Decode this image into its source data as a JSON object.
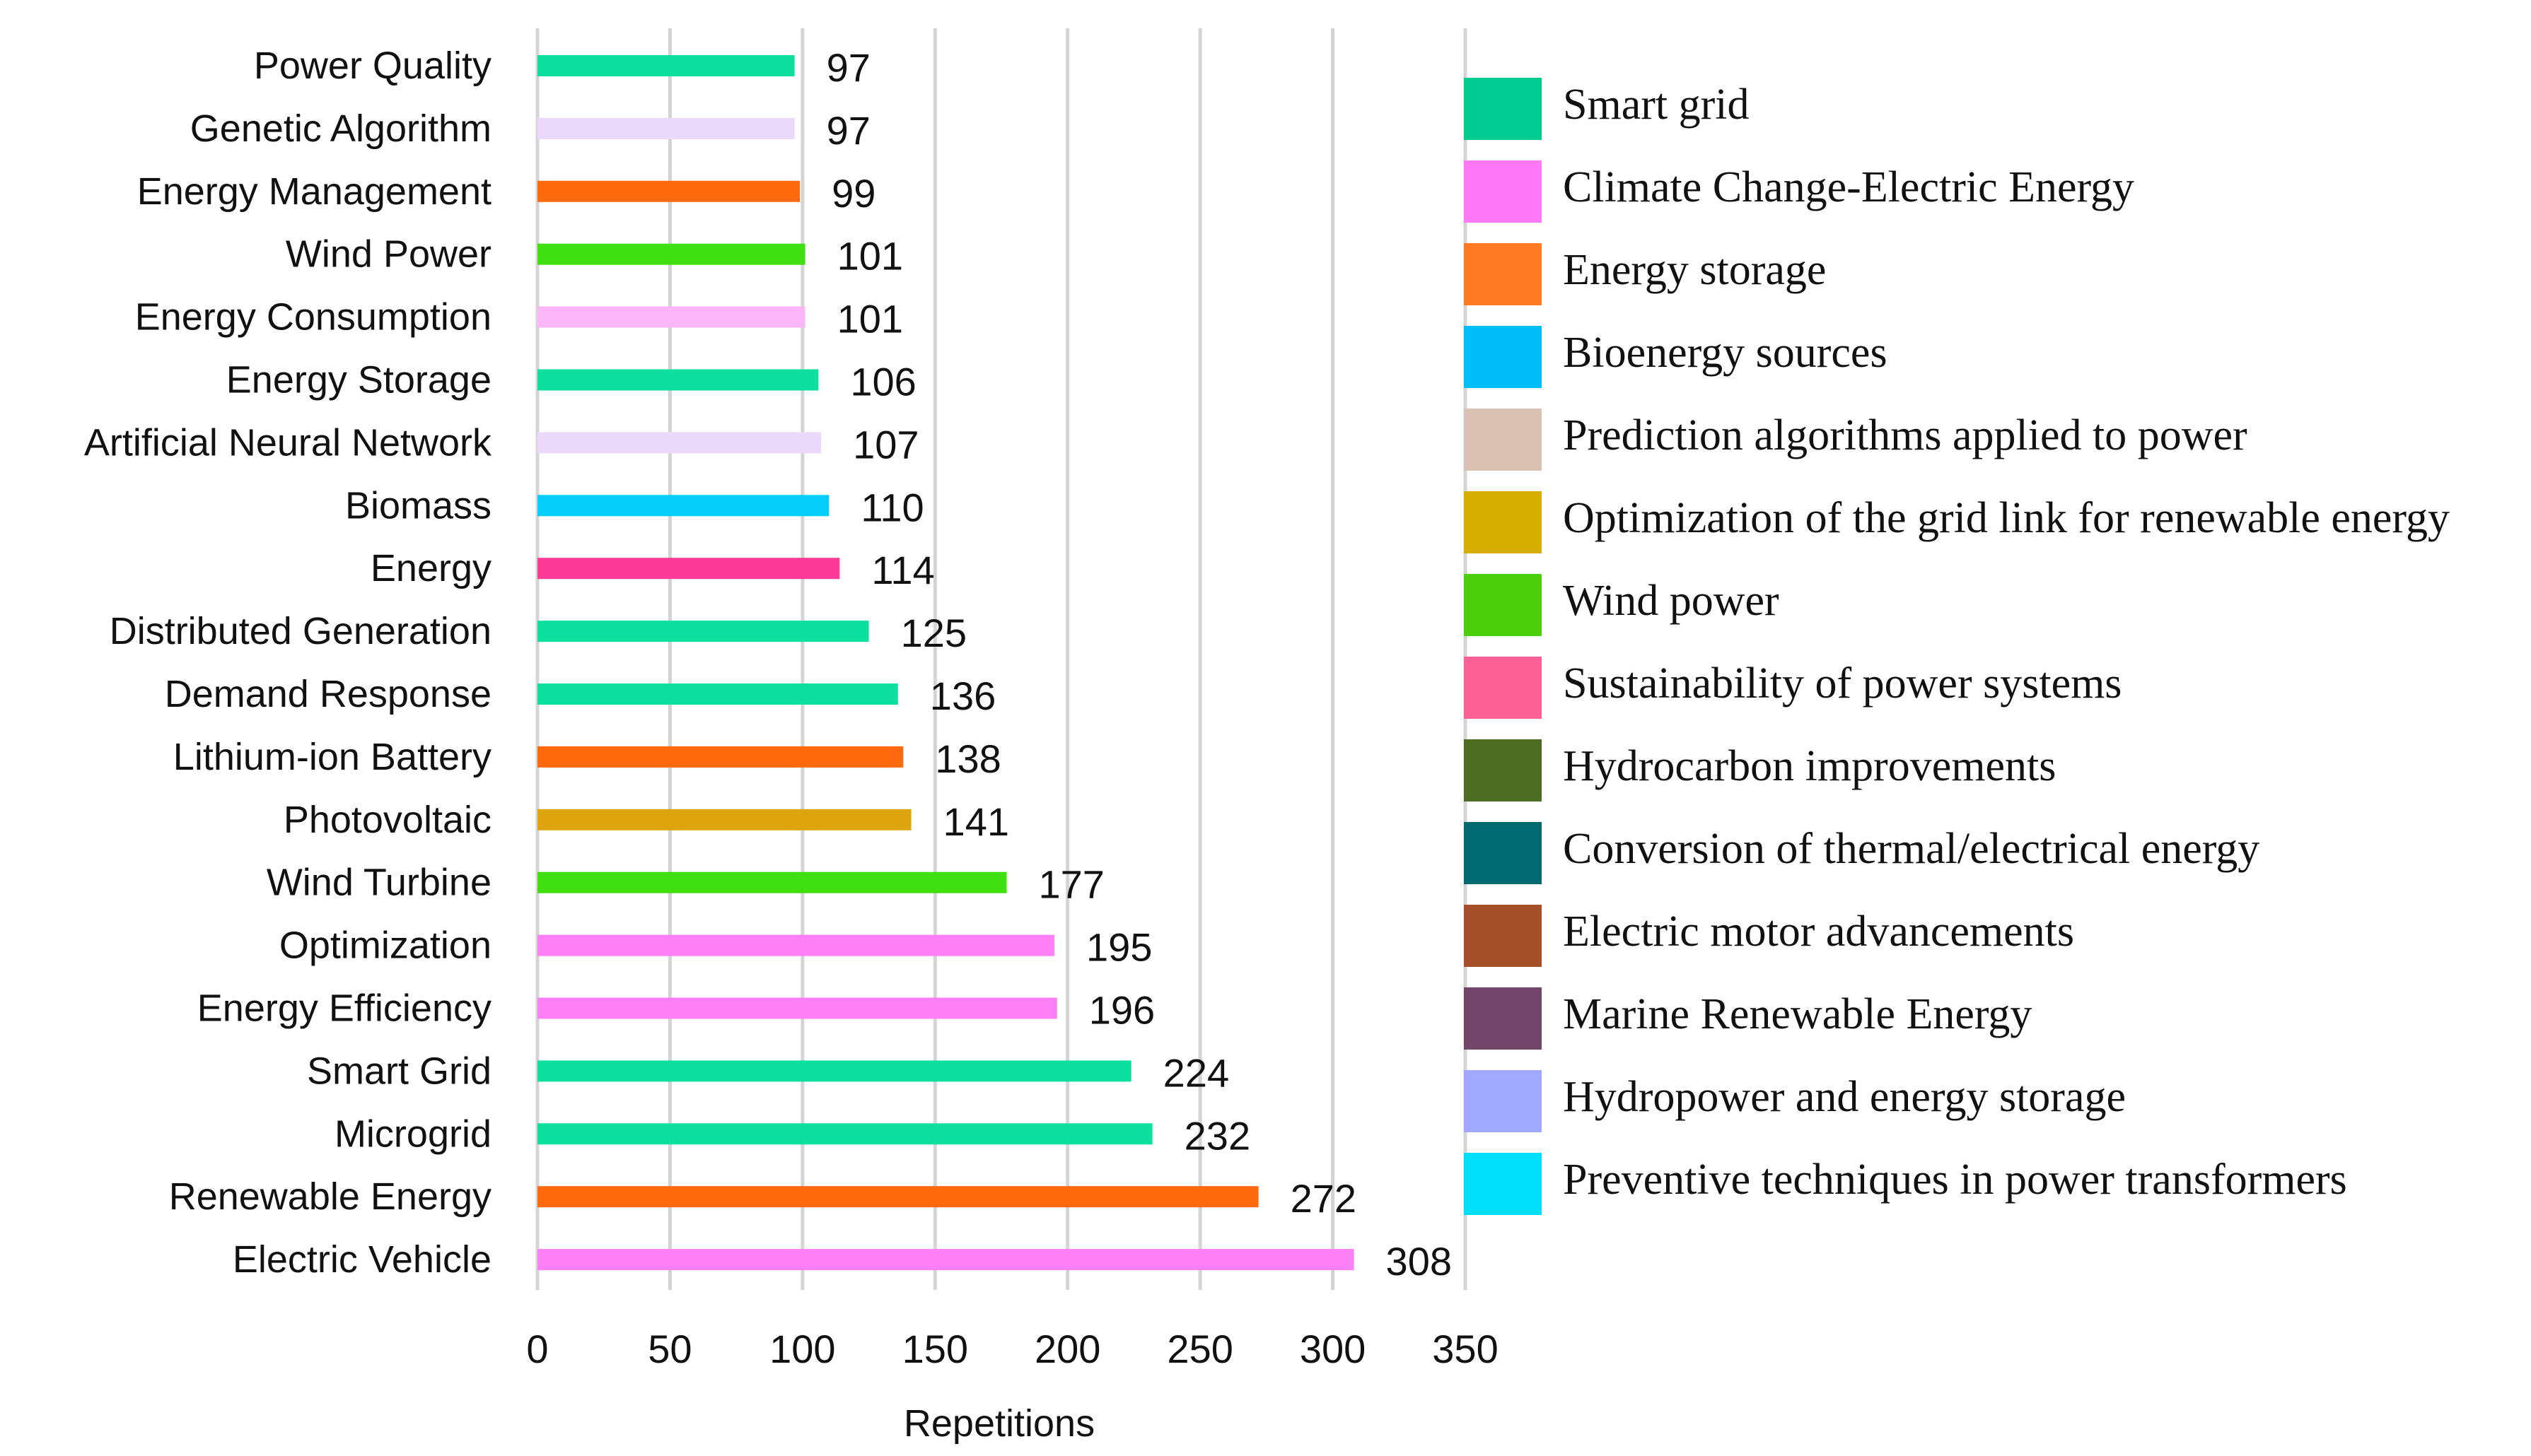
{
  "chart_data": {
    "type": "bar",
    "orientation": "horizontal",
    "title": "",
    "xlabel": "Repetitions",
    "ylabel": "",
    "xlim": [
      0,
      350
    ],
    "xticks": [
      0,
      50,
      100,
      150,
      200,
      250,
      300,
      350
    ],
    "grid": true,
    "legend_position": "right",
    "categories": [
      "Power Quality",
      "Genetic Algorithm",
      "Energy Management",
      "Wind Power",
      "Energy Consumption",
      "Energy Storage",
      "Artificial Neural Network",
      "Biomass",
      "Energy",
      "Distributed Generation",
      "Demand Response",
      "Lithium-ion Battery",
      "Photovoltaic",
      "Wind Turbine",
      "Optimization",
      "Energy Efficiency",
      "Smart Grid",
      "Microgrid",
      "Renewable Energy",
      "Electric Vehicle"
    ],
    "values": [
      97,
      97,
      99,
      101,
      101,
      106,
      107,
      110,
      114,
      125,
      136,
      138,
      141,
      177,
      195,
      196,
      224,
      232,
      272,
      308
    ],
    "bar_colors": [
      "#0ddf9f",
      "#ead9fb",
      "#ff6a0f",
      "#3fdf10",
      "#fbb6f7",
      "#0ddf9f",
      "#ead9fb",
      "#05cdf9",
      "#fd3a96",
      "#0ddf9f",
      "#0ddf9f",
      "#ff6a0f",
      "#dca40d",
      "#3fdf10",
      "#fd7ff5",
      "#fd7ff5",
      "#0ddf9f",
      "#0ddf9f",
      "#ff6a0f",
      "#fd7ff5"
    ],
    "legend": [
      {
        "name": "Smart grid",
        "color": "#00cc8f"
      },
      {
        "name": "Climate Change-Electric Energy",
        "color": "#ff79f7"
      },
      {
        "name": "Energy storage",
        "color": "#ff7a22"
      },
      {
        "name": "Bioenergy sources",
        "color": "#00bff8"
      },
      {
        "name": "Prediction algorithms applied to power",
        "color": "#d9c1b3"
      },
      {
        "name": "Optimization of the grid link for renewable energy",
        "color": "#d6ae00"
      },
      {
        "name": "Wind power",
        "color": "#4ccf0a"
      },
      {
        "name": "Sustainability of power systems",
        "color": "#fd6094"
      },
      {
        "name": "Hydrocarbon improvements",
        "color": "#4d6e22"
      },
      {
        "name": "Conversion of thermal/electrical energy",
        "color": "#006a70"
      },
      {
        "name": "Electric motor advancements",
        "color": "#a3502a"
      },
      {
        "name": "Marine Renewable Energy",
        "color": "#74456a"
      },
      {
        "name": "Hydropower and energy storage",
        "color": "#a0a8ff"
      },
      {
        "name": "Preventive techniques in power transformers",
        "color": "#00dff9"
      }
    ]
  }
}
